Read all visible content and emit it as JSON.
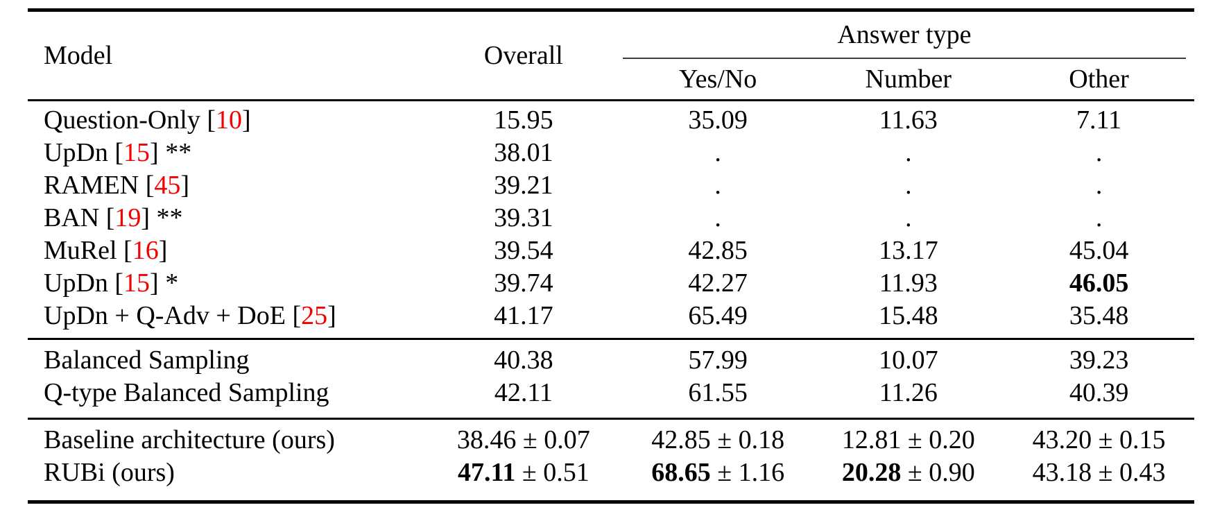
{
  "header": {
    "model": "Model",
    "overall": "Overall",
    "answer_type": "Answer type",
    "yes_no": "Yes/No",
    "number": "Number",
    "other": "Other"
  },
  "colors": {
    "citation_red": "#f30000",
    "rule_black": "#000000",
    "thin_rule_gray": "#3c3c3c",
    "text": "#000000",
    "background": "#ffffff"
  },
  "sections": [
    {
      "rows": [
        {
          "model": {
            "prefix": "Question-Only [",
            "cite": "10",
            "suffix": "]"
          },
          "overall": {
            "main": "15.95"
          },
          "yes_no": {
            "main": "35.09"
          },
          "number": {
            "main": "11.63"
          },
          "other": {
            "main": "7.11"
          }
        },
        {
          "model": {
            "prefix": "UpDn [",
            "cite": "15",
            "suffix": "] **"
          },
          "overall": {
            "main": "38.01"
          },
          "yes_no": {
            "main": "."
          },
          "number": {
            "main": "."
          },
          "other": {
            "main": "."
          }
        },
        {
          "model": {
            "prefix": "RAMEN [",
            "cite": "45",
            "suffix": "]"
          },
          "overall": {
            "main": "39.21"
          },
          "yes_no": {
            "main": "."
          },
          "number": {
            "main": "."
          },
          "other": {
            "main": "."
          }
        },
        {
          "model": {
            "prefix": "BAN [",
            "cite": "19",
            "suffix": "] **"
          },
          "overall": {
            "main": "39.31"
          },
          "yes_no": {
            "main": "."
          },
          "number": {
            "main": "."
          },
          "other": {
            "main": "."
          }
        },
        {
          "model": {
            "prefix": "MuRel [",
            "cite": "16",
            "suffix": "]"
          },
          "overall": {
            "main": "39.54"
          },
          "yes_no": {
            "main": "42.85"
          },
          "number": {
            "main": "13.17"
          },
          "other": {
            "main": "45.04"
          }
        },
        {
          "model": {
            "prefix": "UpDn [",
            "cite": "15",
            "suffix": "] *"
          },
          "overall": {
            "main": "39.74"
          },
          "yes_no": {
            "main": "42.27"
          },
          "number": {
            "main": "11.93"
          },
          "other": {
            "main": "46.05",
            "bold": true
          }
        },
        {
          "model": {
            "prefix": "UpDn + Q-Adv + DoE [",
            "cite": "25",
            "suffix": "]"
          },
          "overall": {
            "main": "41.17"
          },
          "yes_no": {
            "main": "65.49"
          },
          "number": {
            "main": "15.48"
          },
          "other": {
            "main": "35.48"
          }
        }
      ]
    },
    {
      "rows": [
        {
          "model": {
            "prefix": "Balanced Sampling",
            "cite": "",
            "suffix": ""
          },
          "overall": {
            "main": "40.38"
          },
          "yes_no": {
            "main": "57.99"
          },
          "number": {
            "main": "10.07"
          },
          "other": {
            "main": "39.23"
          }
        },
        {
          "model": {
            "prefix": "Q-type Balanced Sampling",
            "cite": "",
            "suffix": ""
          },
          "overall": {
            "main": "42.11"
          },
          "yes_no": {
            "main": "61.55"
          },
          "number": {
            "main": "11.26"
          },
          "other": {
            "main": "40.39"
          }
        }
      ]
    },
    {
      "rows": [
        {
          "model": {
            "prefix": "Baseline architecture (ours)",
            "cite": "",
            "suffix": ""
          },
          "overall": {
            "main": "38.46",
            "pm": " ± 0.07"
          },
          "yes_no": {
            "main": "42.85",
            "pm": " ± 0.18"
          },
          "number": {
            "main": "12.81",
            "pm": " ± 0.20"
          },
          "other": {
            "main": "43.20",
            "pm": " ± 0.15"
          }
        },
        {
          "model": {
            "prefix": "RUBi (ours)",
            "cite": "",
            "suffix": ""
          },
          "overall": {
            "main": "47.11",
            "bold": true,
            "pm": " ± 0.51"
          },
          "yes_no": {
            "main": "68.65",
            "bold": true,
            "pm": " ± 1.16"
          },
          "number": {
            "main": "20.28",
            "bold": true,
            "pm": " ± 0.90"
          },
          "other": {
            "main": "43.18",
            "pm": " ± 0.43"
          }
        }
      ]
    }
  ]
}
